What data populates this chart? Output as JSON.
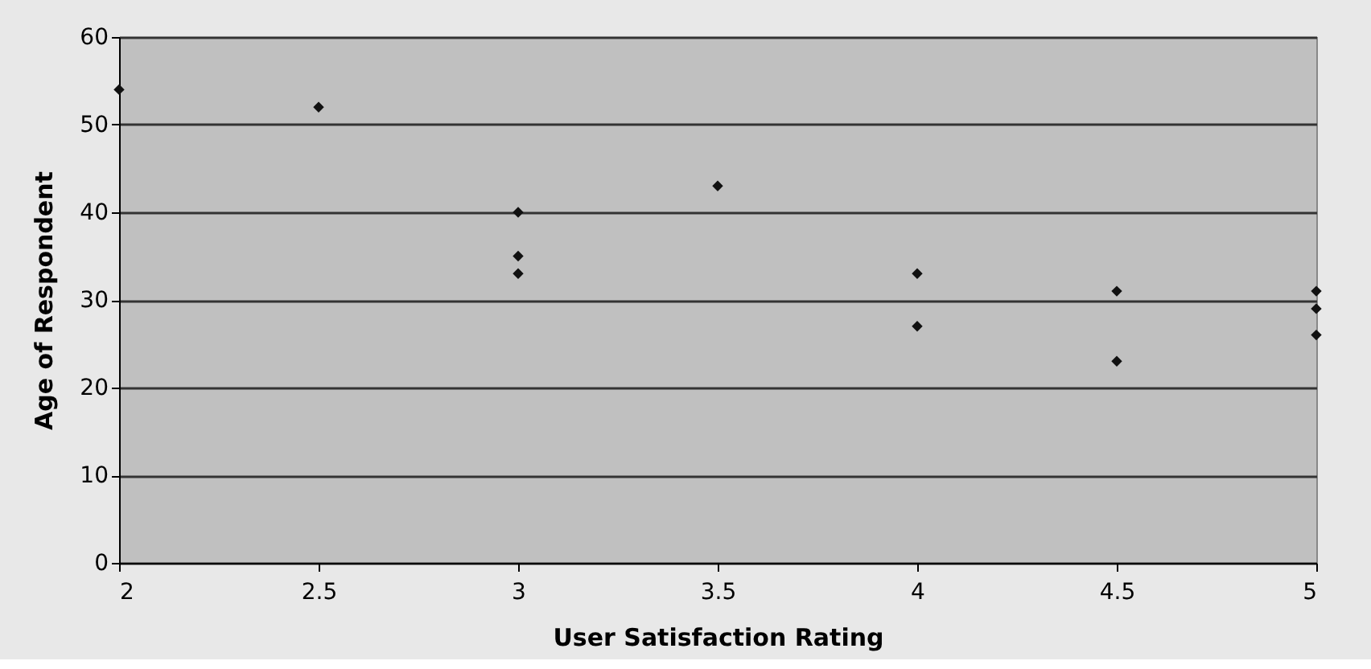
{
  "chart_data": {
    "type": "scatter",
    "xlabel": "User Satisfaction Rating",
    "ylabel": "Age of Respondent",
    "x": [
      2,
      2.5,
      3,
      3,
      3,
      3.5,
      4,
      4,
      4.5,
      4.5,
      5,
      5,
      5
    ],
    "series": [
      {
        "color": "#111111",
        "values": [
          54,
          52,
          40,
          35,
          33,
          43,
          33,
          27,
          31,
          23,
          31,
          29,
          26
        ]
      }
    ],
    "xlim": [
      2,
      5
    ],
    "xticks": [
      2,
      2.5,
      3,
      3.5,
      4,
      4.5,
      5
    ],
    "ylim": [
      0,
      60
    ],
    "yticks": [
      0,
      10,
      20,
      30,
      40,
      50,
      60
    ],
    "grid": "y",
    "legend": false,
    "marker": "diamond"
  }
}
